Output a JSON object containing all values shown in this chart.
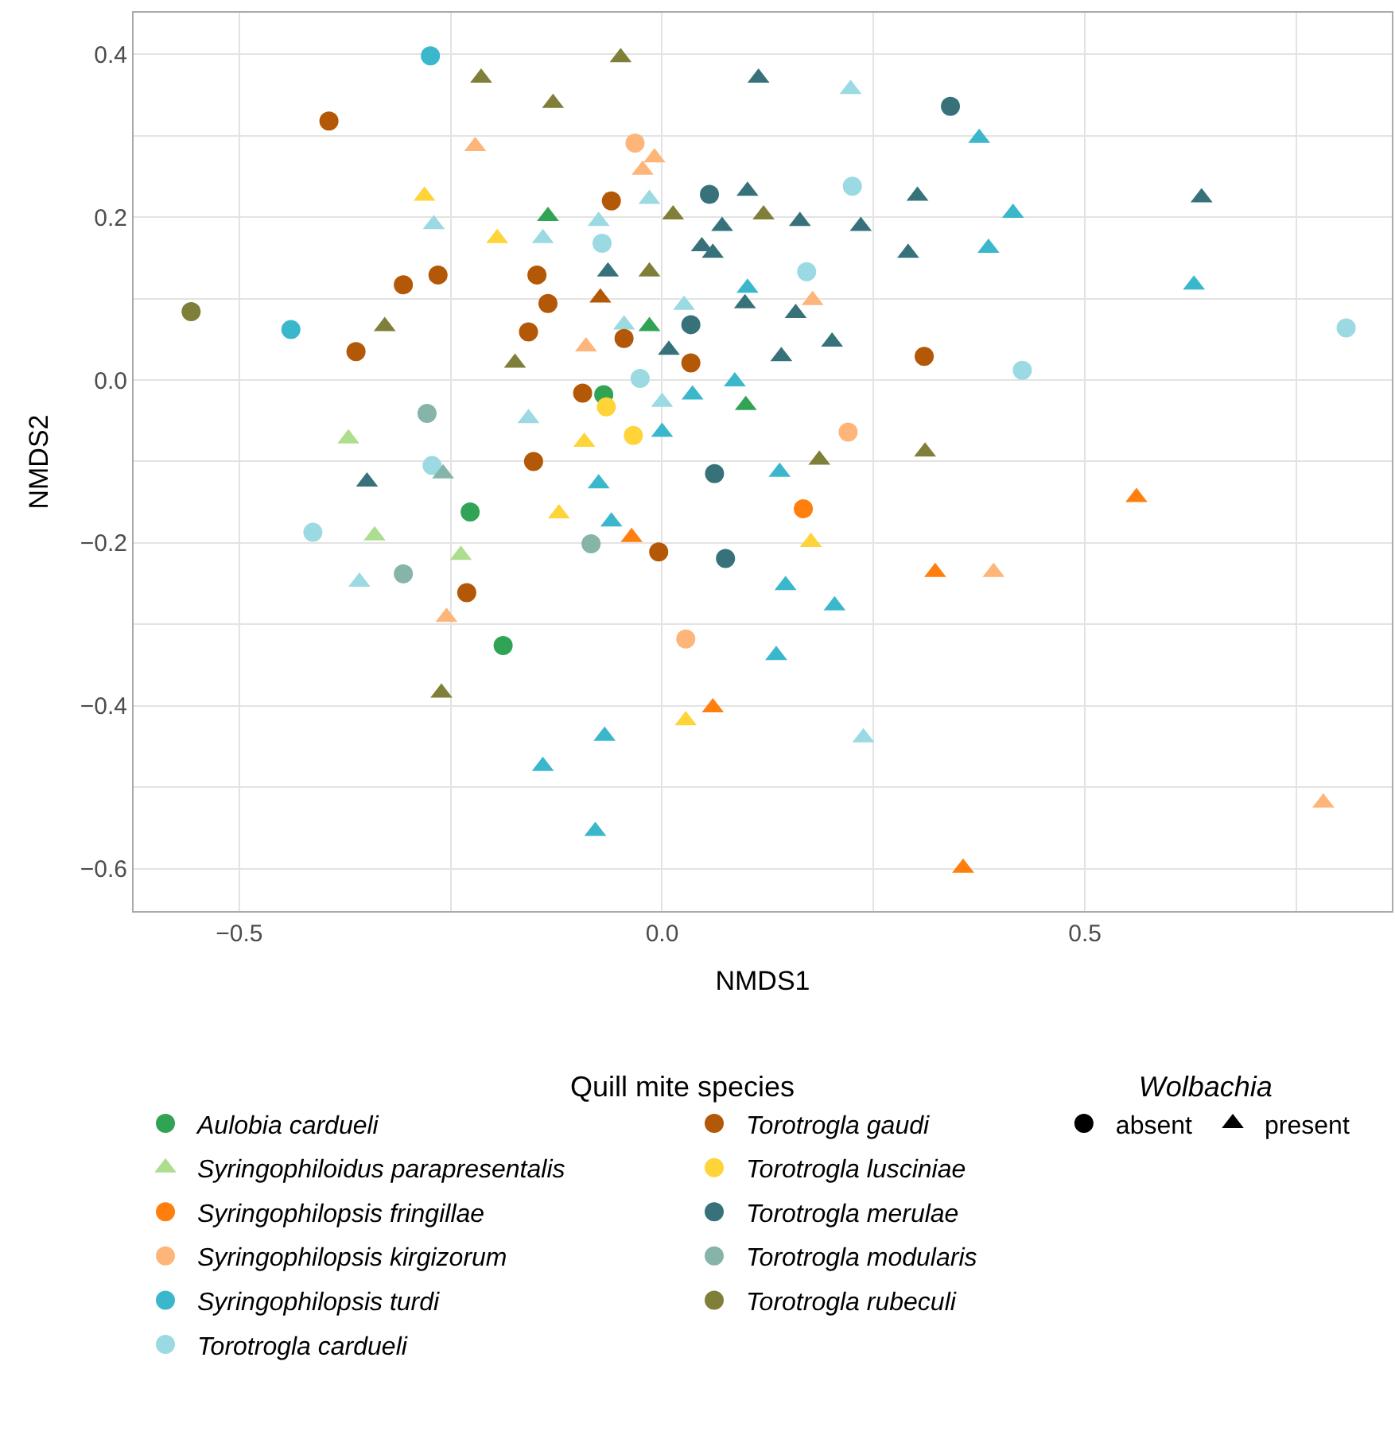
{
  "chart_data": {
    "type": "scatter",
    "xlabel": "NMDS1",
    "ylabel": "NMDS2",
    "legend_title": "Quill mite species",
    "legend": "bottom",
    "grid": true,
    "xlim": [
      -0.625,
      0.863
    ],
    "ylim": [
      -0.652,
      0.451
    ],
    "xticks": [
      {
        "value": -0.5,
        "label": "−0.5"
      },
      {
        "value": -0.25,
        "label": null
      },
      {
        "value": 0,
        "label": "0.0"
      },
      {
        "value": 0.25,
        "label": null
      },
      {
        "value": 0.5,
        "label": "0.5"
      },
      {
        "value": 0.75,
        "label": null
      }
    ],
    "yticks": [
      {
        "value": -0.6,
        "label": "−0.6"
      },
      {
        "value": -0.5,
        "label": null
      },
      {
        "value": -0.4,
        "label": "−0.4"
      },
      {
        "value": -0.3,
        "label": null
      },
      {
        "value": -0.2,
        "label": "−0.2"
      },
      {
        "value": -0.1,
        "label": null
      },
      {
        "value": 0,
        "label": "0.0"
      },
      {
        "value": 0.1,
        "label": null
      },
      {
        "value": 0.2,
        "label": "0.2"
      },
      {
        "value": 0.3,
        "label": null
      },
      {
        "value": 0.4,
        "label": "0.4"
      }
    ],
    "series": [
      {
        "name": "Aulobia cardueli",
        "color": "#31a354",
        "marker": "circle",
        "x": [
          -0.227,
          -0.188,
          -0.069
        ],
        "values": [
          -0.162,
          -0.326,
          -0.018
        ]
      },
      {
        "color": "#31a354",
        "marker": "triangle",
        "x": [
          -0.135,
          -0.015,
          0.099
        ],
        "values": [
          0.201,
          0.066,
          -0.031
        ]
      },
      {
        "name": "Syringophiloidus parapresentalis",
        "color": "#addd8e",
        "marker": "triangle",
        "x": [
          -0.371,
          -0.34,
          -0.238
        ],
        "values": [
          -0.072,
          -0.191,
          -0.215
        ]
      },
      {
        "name": "Syringophilopsis fringillae",
        "color": "#ff7f0e",
        "marker": "circle",
        "x": [
          0.167
        ],
        "values": [
          -0.158
        ]
      },
      {
        "color": "#ff7f0e",
        "marker": "triangle",
        "x": [
          0.561,
          0.323,
          -0.036,
          0.06,
          0.356
        ],
        "values": [
          -0.144,
          -0.236,
          -0.193,
          -0.402,
          -0.599
        ]
      },
      {
        "name": "Syringophilopsis kirgizorum",
        "color": "#fdb57a",
        "marker": "circle",
        "x": [
          -0.032,
          0.22,
          0.028
        ],
        "values": [
          0.291,
          -0.064,
          -0.318
        ]
      },
      {
        "color": "#fdb57a",
        "marker": "triangle",
        "x": [
          -0.221,
          -0.009,
          -0.023,
          0.178,
          -0.09,
          -0.255,
          0.392,
          0.782
        ],
        "values": [
          0.287,
          0.273,
          0.258,
          0.098,
          0.041,
          -0.291,
          -0.236,
          -0.519
        ]
      },
      {
        "name": "Syringophilopsis turdi",
        "color": "#3bb7cc",
        "marker": "circle",
        "x": [
          -0.274,
          -0.439
        ],
        "values": [
          0.398,
          0.062
        ]
      },
      {
        "color": "#3bb7cc",
        "marker": "triangle",
        "x": [
          0.375,
          0.415,
          0.386,
          0.629,
          0.101,
          0.086,
          0.036,
          0.0,
          0.139,
          -0.075,
          -0.06,
          0.146,
          0.204,
          0.135,
          -0.068,
          -0.141,
          -0.079
        ],
        "values": [
          0.297,
          0.205,
          0.162,
          0.117,
          0.113,
          -0.002,
          -0.018,
          -0.064,
          -0.113,
          -0.127,
          -0.174,
          -0.252,
          -0.277,
          -0.338,
          -0.437,
          -0.474,
          -0.554
        ]
      },
      {
        "name": "Torotrogla cardueli",
        "color": "#9bd9e3",
        "marker": "circle",
        "x": [
          0.225,
          0.171,
          -0.071,
          -0.026,
          0.426,
          0.809,
          -0.272,
          -0.413
        ],
        "values": [
          0.238,
          0.133,
          0.168,
          0.002,
          0.012,
          0.064,
          -0.105,
          -0.187
        ]
      },
      {
        "color": "#9bd9e3",
        "marker": "triangle",
        "x": [
          0.223,
          -0.27,
          -0.141,
          -0.075,
          -0.015,
          -0.045,
          0.026,
          0.0,
          -0.158,
          -0.358,
          0.238
        ],
        "values": [
          0.357,
          0.191,
          0.174,
          0.195,
          0.222,
          0.068,
          0.092,
          -0.027,
          -0.047,
          -0.248,
          -0.439
        ]
      },
      {
        "name": "Torotrogla gaudi",
        "color": "#b35806",
        "marker": "circle",
        "x": [
          -0.394,
          -0.306,
          -0.265,
          -0.362,
          -0.148,
          -0.135,
          -0.158,
          -0.152,
          -0.06,
          -0.045,
          -0.094,
          0.034,
          0.31,
          -0.004,
          -0.231
        ],
        "values": [
          0.318,
          0.117,
          0.129,
          0.035,
          0.129,
          0.094,
          0.059,
          -0.1,
          0.22,
          0.051,
          -0.016,
          0.021,
          0.029,
          -0.211,
          -0.261
        ]
      },
      {
        "color": "#b35806",
        "marker": "triangle",
        "x": [
          -0.073
        ],
        "values": [
          0.101
        ]
      },
      {
        "name": "Torotrogla lusciniae",
        "color": "#fed439",
        "marker": "circle",
        "x": [
          -0.066,
          -0.034
        ],
        "values": [
          -0.033,
          -0.068
        ]
      },
      {
        "color": "#fed439",
        "marker": "triangle",
        "x": [
          -0.281,
          -0.195,
          -0.092,
          -0.122,
          0.028,
          0.176
        ],
        "values": [
          0.226,
          0.174,
          -0.076,
          -0.164,
          -0.418,
          -0.199
        ]
      },
      {
        "name": "Torotrogla merulae",
        "color": "#37727a",
        "marker": "circle",
        "x": [
          0.341,
          0.056,
          0.034,
          0.062,
          0.075
        ],
        "values": [
          0.336,
          0.228,
          0.068,
          -0.115,
          -0.219
        ]
      },
      {
        "color": "#37727a",
        "marker": "triangle",
        "x": [
          0.114,
          0.101,
          0.071,
          0.163,
          0.235,
          0.047,
          0.06,
          0.291,
          0.302,
          -0.064,
          0.098,
          0.158,
          0.201,
          0.008,
          0.141,
          0.638,
          -0.349
        ],
        "values": [
          0.371,
          0.232,
          0.189,
          0.195,
          0.189,
          0.164,
          0.156,
          0.156,
          0.226,
          0.133,
          0.094,
          0.082,
          0.047,
          0.037,
          0.029,
          0.224,
          -0.125
        ]
      },
      {
        "name": "Torotrogla modularis",
        "color": "#86b4a9",
        "marker": "circle",
        "x": [
          -0.278,
          -0.306,
          -0.084
        ],
        "values": [
          -0.041,
          -0.238,
          -0.201
        ]
      },
      {
        "color": "#86b4a9",
        "marker": "triangle",
        "x": [
          -0.259
        ],
        "values": [
          -0.115
        ]
      },
      {
        "name": "Torotrogla rubeculi",
        "color": "#7f7f3a",
        "marker": "circle",
        "x": [
          -0.557
        ],
        "values": [
          0.084
        ]
      },
      {
        "color": "#7f7f3a",
        "marker": "triangle",
        "x": [
          -0.214,
          -0.129,
          -0.328,
          -0.174,
          -0.049,
          0.013,
          0.12,
          -0.015,
          0.186,
          0.311,
          -0.261
        ],
        "values": [
          0.371,
          0.34,
          0.066,
          0.021,
          0.396,
          0.203,
          0.203,
          0.133,
          -0.098,
          -0.088,
          -0.384
        ]
      }
    ],
    "annotations": [
      "Wolbachia",
      "absent",
      "present"
    ]
  }
}
